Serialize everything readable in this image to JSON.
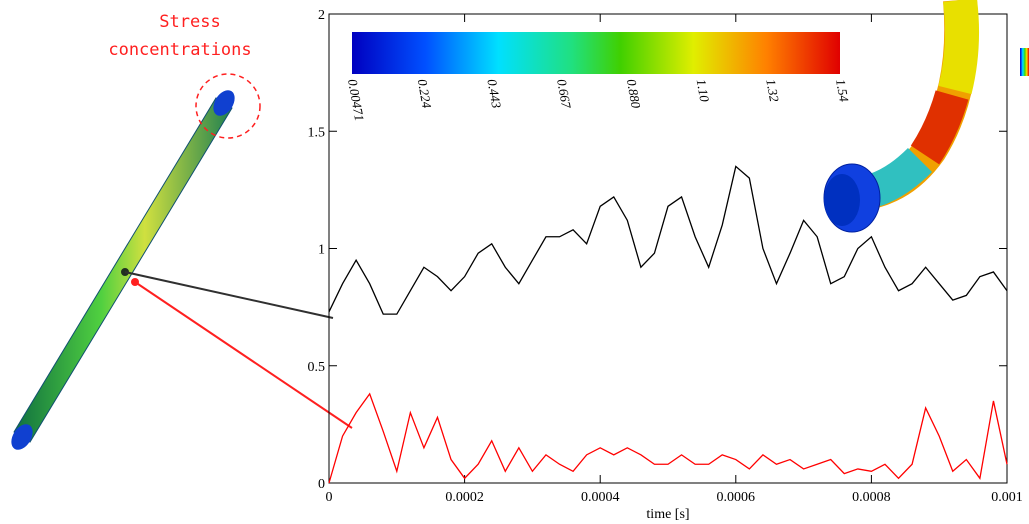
{
  "chart_data": {
    "type": "line",
    "xlabel": "time [s]",
    "annotation": [
      "Stress",
      "concentrations"
    ],
    "colorbar": {
      "labels": [
        "0.00471",
        "0.224",
        "0.443",
        "0.667",
        "0.880",
        "1.10",
        "1.32",
        "1.54"
      ]
    },
    "x": [
      0,
      2e-05,
      4e-05,
      6e-05,
      8e-05,
      0.0001,
      0.00012,
      0.00014,
      0.00016,
      0.00018,
      0.0002,
      0.00022,
      0.00024,
      0.00026,
      0.00028,
      0.0003,
      0.00032,
      0.00034,
      0.00036,
      0.00038,
      0.0004,
      0.00042,
      0.00044,
      0.00046,
      0.00048,
      0.0005,
      0.00052,
      0.00054,
      0.00056,
      0.00058,
      0.0006,
      0.00062,
      0.00064,
      0.00066,
      0.00068,
      0.0007,
      0.00072,
      0.00074,
      0.00076,
      0.00078,
      0.0008,
      0.00082,
      0.00084,
      0.00086,
      0.00088,
      0.0009,
      0.00092,
      0.00094,
      0.00096,
      0.00098,
      0.001
    ],
    "series": [
      {
        "color": "#000000",
        "values": [
          0.73,
          0.85,
          0.95,
          0.85,
          0.72,
          0.72,
          0.82,
          0.92,
          0.88,
          0.82,
          0.88,
          0.98,
          1.02,
          0.92,
          0.85,
          0.95,
          1.05,
          1.05,
          1.08,
          1.02,
          1.18,
          1.22,
          1.12,
          0.92,
          0.98,
          1.18,
          1.22,
          1.05,
          0.92,
          1.1,
          1.35,
          1.3,
          1.0,
          0.85,
          0.98,
          1.12,
          1.05,
          0.85,
          0.88,
          1.0,
          1.05,
          0.92,
          0.82,
          0.85,
          0.92,
          0.85,
          0.78,
          0.8,
          0.88,
          0.9,
          0.82
        ]
      },
      {
        "color": "#ff0000",
        "values": [
          0,
          0.2,
          0.3,
          0.38,
          0.22,
          0.05,
          0.3,
          0.15,
          0.28,
          0.1,
          0.02,
          0.08,
          0.18,
          0.05,
          0.15,
          0.05,
          0.12,
          0.08,
          0.05,
          0.12,
          0.15,
          0.12,
          0.15,
          0.12,
          0.08,
          0.08,
          0.12,
          0.08,
          0.08,
          0.12,
          0.1,
          0.06,
          0.12,
          0.08,
          0.1,
          0.06,
          0.08,
          0.1,
          0.04,
          0.06,
          0.05,
          0.08,
          0.02,
          0.08,
          0.32,
          0.2,
          0.05,
          0.1,
          0.02,
          0.35,
          0.08
        ]
      }
    ],
    "xlim": [
      0,
      0.001
    ],
    "xticks": [
      0,
      0.0002,
      0.0004,
      0.0006,
      0.0008,
      0.001
    ],
    "ylim": [
      0,
      2
    ],
    "yticks": [
      0,
      0.5,
      1,
      1.5,
      2
    ]
  }
}
